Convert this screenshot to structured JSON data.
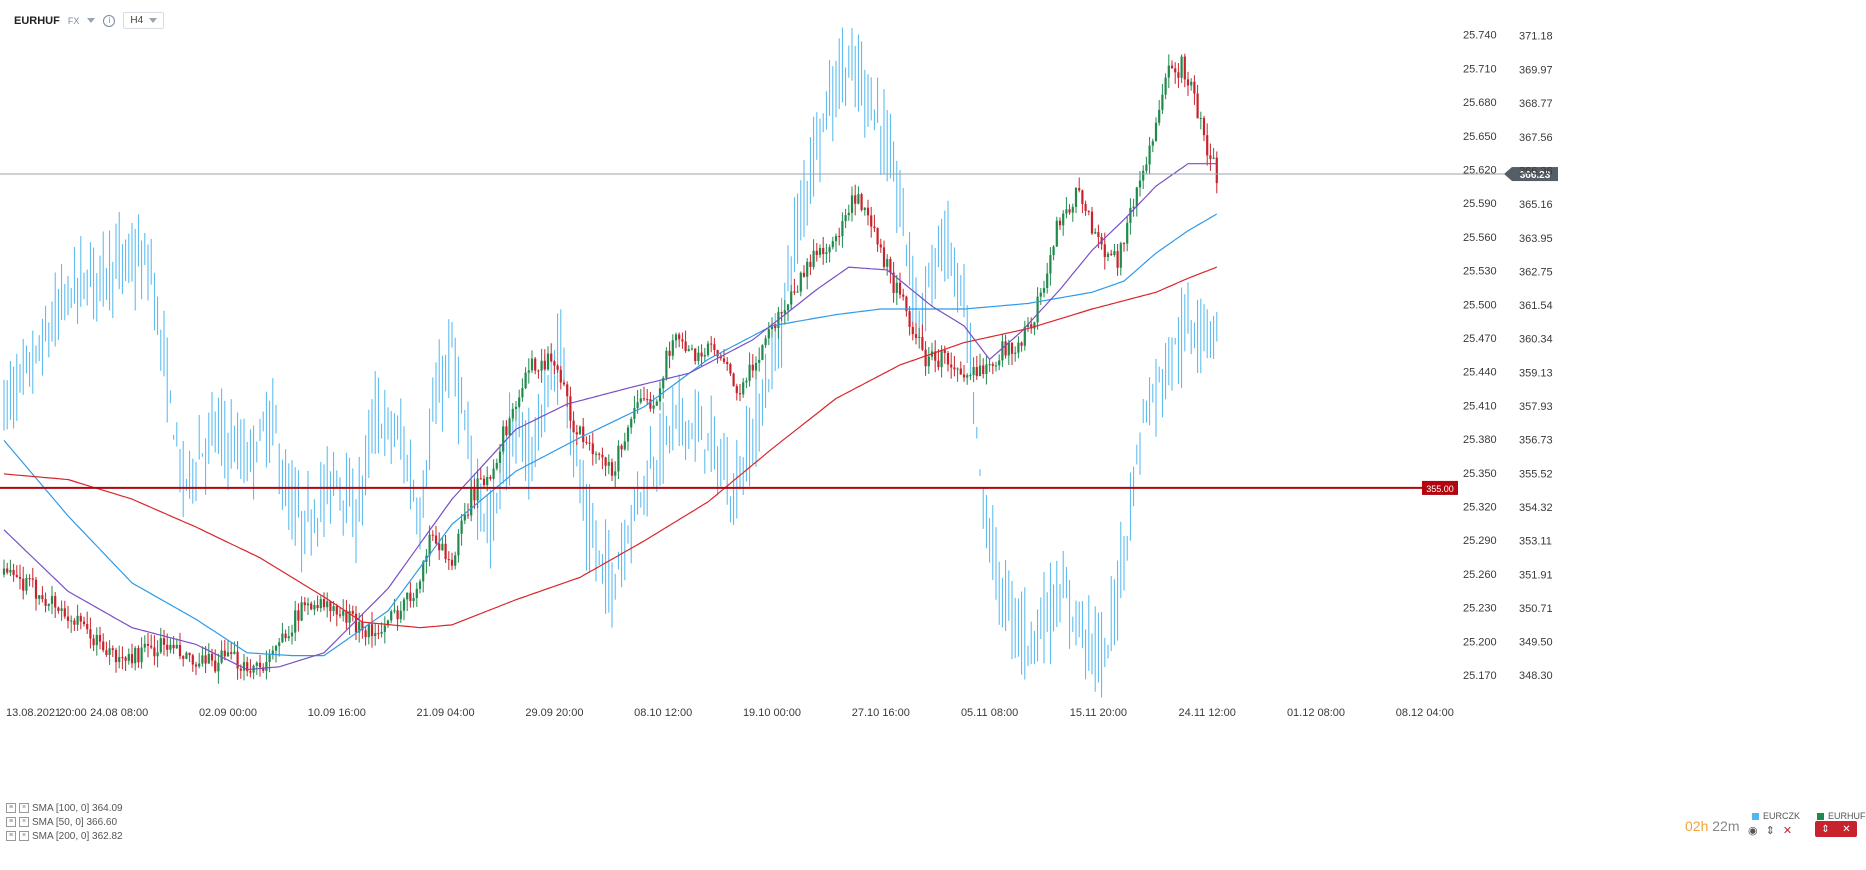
{
  "header": {
    "symbol": "EURHUF",
    "market": "FX",
    "info_icon": "info-icon",
    "timeframe": "H4"
  },
  "chart_data": {
    "type": "line",
    "title": "EURHUF",
    "timeframe": "H4",
    "primary_series": "EURCZK",
    "y_left": {
      "label": "EURCZK",
      "ticks": [
        25.74,
        25.71,
        25.68,
        25.65,
        25.62,
        25.59,
        25.56,
        25.53,
        25.5,
        25.47,
        25.44,
        25.41,
        25.38,
        25.35,
        25.32,
        25.29,
        25.26,
        25.23,
        25.2,
        25.17
      ],
      "tick_labels": [
        "25.740",
        "25.710",
        "25.680",
        "25.650",
        "25.620",
        "25.590",
        "25.560",
        "25.530",
        "25.500",
        "25.470",
        "25.440",
        "25.410",
        "25.380",
        "25.350",
        "25.320",
        "25.290",
        "25.260",
        "25.230",
        "25.200",
        "25.170"
      ],
      "range": [
        25.146,
        25.762
      ]
    },
    "y_right": {
      "label": "EURHUF",
      "ticks": [
        371.18,
        369.97,
        368.77,
        367.56,
        366.36,
        365.16,
        363.95,
        362.75,
        361.54,
        360.34,
        359.13,
        357.93,
        356.73,
        355.52,
        354.32,
        353.11,
        351.91,
        350.71,
        349.5,
        348.3
      ],
      "tick_labels": [
        "371.18",
        "369.97",
        "368.77",
        "367.56",
        "366.36",
        "365.16",
        "363.95",
        "362.75",
        "361.54",
        "360.34",
        "359.13",
        "357.93",
        "356.73",
        "355.52",
        "354.32",
        "353.11",
        "351.91",
        "350.71",
        "349.50",
        "348.30"
      ],
      "range": [
        347.34,
        372.1
      ]
    },
    "x_labels": [
      "13.08.2021",
      "20:00",
      "24.08 08:00",
      "02.09 00:00",
      "10.09 16:00",
      "21.09 04:00",
      "29.09 20:00",
      "08.10 12:00",
      "19.10 00:00",
      "27.10 16:00",
      "05.11 08:00",
      "15.11 20:00",
      "24.11 12:00",
      "01.12 08:00",
      "08.12 04:00"
    ],
    "x_label_bars": [
      0,
      12,
      36,
      70,
      104,
      138,
      172,
      206,
      240,
      274,
      308,
      342,
      376,
      410,
      444
    ],
    "bars_count": 380,
    "eurhuf": {
      "name": "EURHUF",
      "style": "candlestick",
      "color_up": "#1f8a4c",
      "color_down": "#c8232c",
      "anchors": [
        [
          0,
          351.9
        ],
        [
          12,
          351.2
        ],
        [
          20,
          350.4
        ],
        [
          36,
          348.8
        ],
        [
          50,
          349.4
        ],
        [
          60,
          348.6
        ],
        [
          70,
          348.9
        ],
        [
          78,
          348.6
        ],
        [
          84,
          348.9
        ],
        [
          88,
          349.9
        ],
        [
          96,
          351.0
        ],
        [
          106,
          350.4
        ],
        [
          118,
          349.7
        ],
        [
          122,
          350.5
        ],
        [
          128,
          351.3
        ],
        [
          134,
          353.4
        ],
        [
          140,
          352.3
        ],
        [
          146,
          354.7
        ],
        [
          152,
          355.6
        ],
        [
          158,
          357.5
        ],
        [
          165,
          359.4
        ],
        [
          172,
          359.7
        ],
        [
          178,
          357.2
        ],
        [
          184,
          356.2
        ],
        [
          190,
          355.5
        ],
        [
          196,
          357.6
        ],
        [
          204,
          358.3
        ],
        [
          209,
          360.5
        ],
        [
          214,
          359.8
        ],
        [
          222,
          359.9
        ],
        [
          230,
          358.3
        ],
        [
          238,
          360.4
        ],
        [
          246,
          361.9
        ],
        [
          254,
          363.5
        ],
        [
          260,
          363.8
        ],
        [
          266,
          365.4
        ],
        [
          272,
          364.0
        ],
        [
          278,
          362.3
        ],
        [
          284,
          360.7
        ],
        [
          288,
          359.6
        ],
        [
          294,
          359.7
        ],
        [
          300,
          358.7
        ],
        [
          306,
          359.4
        ],
        [
          312,
          359.9
        ],
        [
          318,
          360.2
        ],
        [
          324,
          361.8
        ],
        [
          330,
          364.7
        ],
        [
          336,
          365.6
        ],
        [
          342,
          363.8
        ],
        [
          348,
          363.2
        ],
        [
          352,
          364.8
        ],
        [
          358,
          367.2
        ],
        [
          364,
          369.8
        ],
        [
          368,
          370.1
        ],
        [
          372,
          369.0
        ],
        [
          376,
          367.0
        ],
        [
          379,
          366.23
        ]
      ],
      "last_price": "366.23"
    },
    "eurczk": {
      "name": "EURCZK",
      "style": "ohlc",
      "color": "#4fb6ee",
      "anchors": [
        [
          0,
          25.41
        ],
        [
          10,
          25.45
        ],
        [
          20,
          25.51
        ],
        [
          30,
          25.53
        ],
        [
          40,
          25.54
        ],
        [
          46,
          25.53
        ],
        [
          52,
          25.41
        ],
        [
          56,
          25.34
        ],
        [
          66,
          25.39
        ],
        [
          76,
          25.36
        ],
        [
          84,
          25.4
        ],
        [
          88,
          25.33
        ],
        [
          94,
          25.3
        ],
        [
          104,
          25.35
        ],
        [
          110,
          25.31
        ],
        [
          116,
          25.4
        ],
        [
          124,
          25.38
        ],
        [
          130,
          25.31
        ],
        [
          134,
          25.4
        ],
        [
          140,
          25.46
        ],
        [
          146,
          25.35
        ],
        [
          152,
          25.3
        ],
        [
          158,
          25.38
        ],
        [
          165,
          25.37
        ],
        [
          174,
          25.46
        ],
        [
          182,
          25.3
        ],
        [
          190,
          25.25
        ],
        [
          198,
          25.33
        ],
        [
          210,
          25.4
        ],
        [
          220,
          25.38
        ],
        [
          228,
          25.33
        ],
        [
          236,
          25.4
        ],
        [
          242,
          25.47
        ],
        [
          246,
          25.54
        ],
        [
          254,
          25.65
        ],
        [
          262,
          25.71
        ],
        [
          268,
          25.7
        ],
        [
          274,
          25.66
        ],
        [
          280,
          25.59
        ],
        [
          286,
          25.49
        ],
        [
          294,
          25.56
        ],
        [
          300,
          25.5
        ],
        [
          306,
          25.32
        ],
        [
          312,
          25.24
        ],
        [
          320,
          25.2
        ],
        [
          330,
          25.24
        ],
        [
          336,
          25.22
        ],
        [
          344,
          25.18
        ],
        [
          350,
          25.28
        ],
        [
          356,
          25.4
        ],
        [
          364,
          25.45
        ],
        [
          370,
          25.48
        ],
        [
          379,
          25.48
        ]
      ]
    },
    "sma_lines": [
      {
        "name": "SMA [100, 0] 364.09",
        "color": "#2e9be8",
        "anchors": [
          [
            0,
            356.7
          ],
          [
            20,
            354.0
          ],
          [
            40,
            351.6
          ],
          [
            60,
            350.3
          ],
          [
            76,
            349.1
          ],
          [
            90,
            349.0
          ],
          [
            100,
            349.0
          ],
          [
            110,
            349.8
          ],
          [
            120,
            350.6
          ],
          [
            140,
            353.7
          ],
          [
            160,
            355.6
          ],
          [
            180,
            356.8
          ],
          [
            200,
            357.9
          ],
          [
            220,
            359.6
          ],
          [
            240,
            360.8
          ],
          [
            260,
            361.2
          ],
          [
            274,
            361.4
          ],
          [
            290,
            361.4
          ],
          [
            300,
            361.4
          ],
          [
            320,
            361.6
          ],
          [
            340,
            362.0
          ],
          [
            350,
            362.4
          ],
          [
            360,
            363.4
          ],
          [
            370,
            364.2
          ],
          [
            379,
            364.8
          ]
        ]
      },
      {
        "name": "SMA [50, 0] 366.60",
        "color": "#7a4fc4",
        "anchors": [
          [
            0,
            353.5
          ],
          [
            20,
            351.3
          ],
          [
            40,
            350.0
          ],
          [
            60,
            349.4
          ],
          [
            76,
            348.5
          ],
          [
            86,
            348.6
          ],
          [
            100,
            349.1
          ],
          [
            120,
            351.4
          ],
          [
            140,
            354.6
          ],
          [
            160,
            357.1
          ],
          [
            176,
            358.0
          ],
          [
            196,
            358.6
          ],
          [
            214,
            359.1
          ],
          [
            234,
            360.3
          ],
          [
            254,
            362.1
          ],
          [
            264,
            362.9
          ],
          [
            276,
            362.8
          ],
          [
            290,
            361.5
          ],
          [
            300,
            360.8
          ],
          [
            308,
            359.6
          ],
          [
            318,
            360.6
          ],
          [
            330,
            362.1
          ],
          [
            340,
            363.5
          ],
          [
            350,
            364.6
          ],
          [
            360,
            365.8
          ],
          [
            370,
            366.6
          ],
          [
            379,
            366.6
          ]
        ]
      },
      {
        "name": "SMA [200, 0] 362.82",
        "color": "#d8262b",
        "anchors": [
          [
            0,
            355.5
          ],
          [
            20,
            355.3
          ],
          [
            40,
            354.6
          ],
          [
            60,
            353.6
          ],
          [
            80,
            352.5
          ],
          [
            100,
            351.1
          ],
          [
            112,
            350.2
          ],
          [
            130,
            350.0
          ],
          [
            140,
            350.1
          ],
          [
            160,
            351.0
          ],
          [
            180,
            351.8
          ],
          [
            200,
            353.1
          ],
          [
            220,
            354.5
          ],
          [
            240,
            356.4
          ],
          [
            260,
            358.2
          ],
          [
            280,
            359.4
          ],
          [
            300,
            360.2
          ],
          [
            320,
            360.7
          ],
          [
            340,
            361.4
          ],
          [
            360,
            362.0
          ],
          [
            370,
            362.5
          ],
          [
            379,
            362.9
          ]
        ]
      }
    ],
    "levels": [
      {
        "label": "366.23",
        "value": 366.23,
        "color": "#9aa3ab",
        "badge": "#555e66"
      },
      {
        "label": "355.00",
        "value": 355.0,
        "color": "#b3050f",
        "badge": "#b3050f"
      }
    ],
    "legend": {
      "sma100": "SMA [100, 0] 364.09",
      "sma50": "SMA [50, 0] 366.60",
      "sma200": "SMA [200, 0] 362.82"
    },
    "series_legend": [
      {
        "label": "EURCZK",
        "color": "#4fb6ee"
      },
      {
        "label": "EURHUF",
        "color": "#1f8a4c"
      }
    ],
    "grid": false,
    "legend_position": "bottom-left"
  },
  "timer": {
    "hours": "02h",
    "minutes": "22m"
  },
  "controls": {
    "eye": "eye-icon",
    "sort": "sort-icon",
    "close": "close-icon"
  }
}
